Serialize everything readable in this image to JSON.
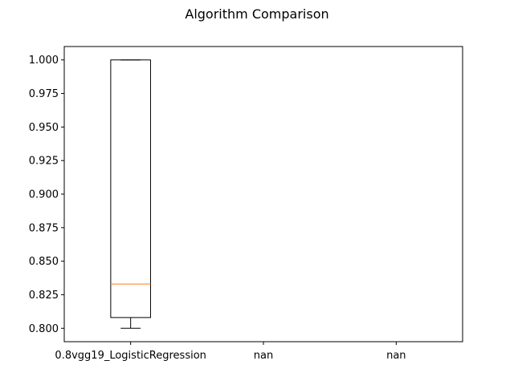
{
  "chart_data": {
    "type": "box",
    "title": "Algorithm Comparison",
    "xlabel": "",
    "ylabel": "",
    "categories": [
      "0.8vgg19_LogisticRegression",
      "nan",
      "nan"
    ],
    "boxes": [
      {
        "category": "0.8vgg19_LogisticRegression",
        "whisker_low": 0.8,
        "q1": 0.808,
        "median": 0.833,
        "q3": 1.0,
        "whisker_high": 1.0
      },
      null,
      null
    ],
    "ylim": [
      0.79,
      1.01
    ],
    "yticks": [
      "0.800",
      "0.825",
      "0.850",
      "0.875",
      "0.900",
      "0.925",
      "0.950",
      "0.975",
      "1.000"
    ],
    "grid": false,
    "colors": {
      "box": "#000000",
      "median": "#ff7f0e"
    }
  }
}
